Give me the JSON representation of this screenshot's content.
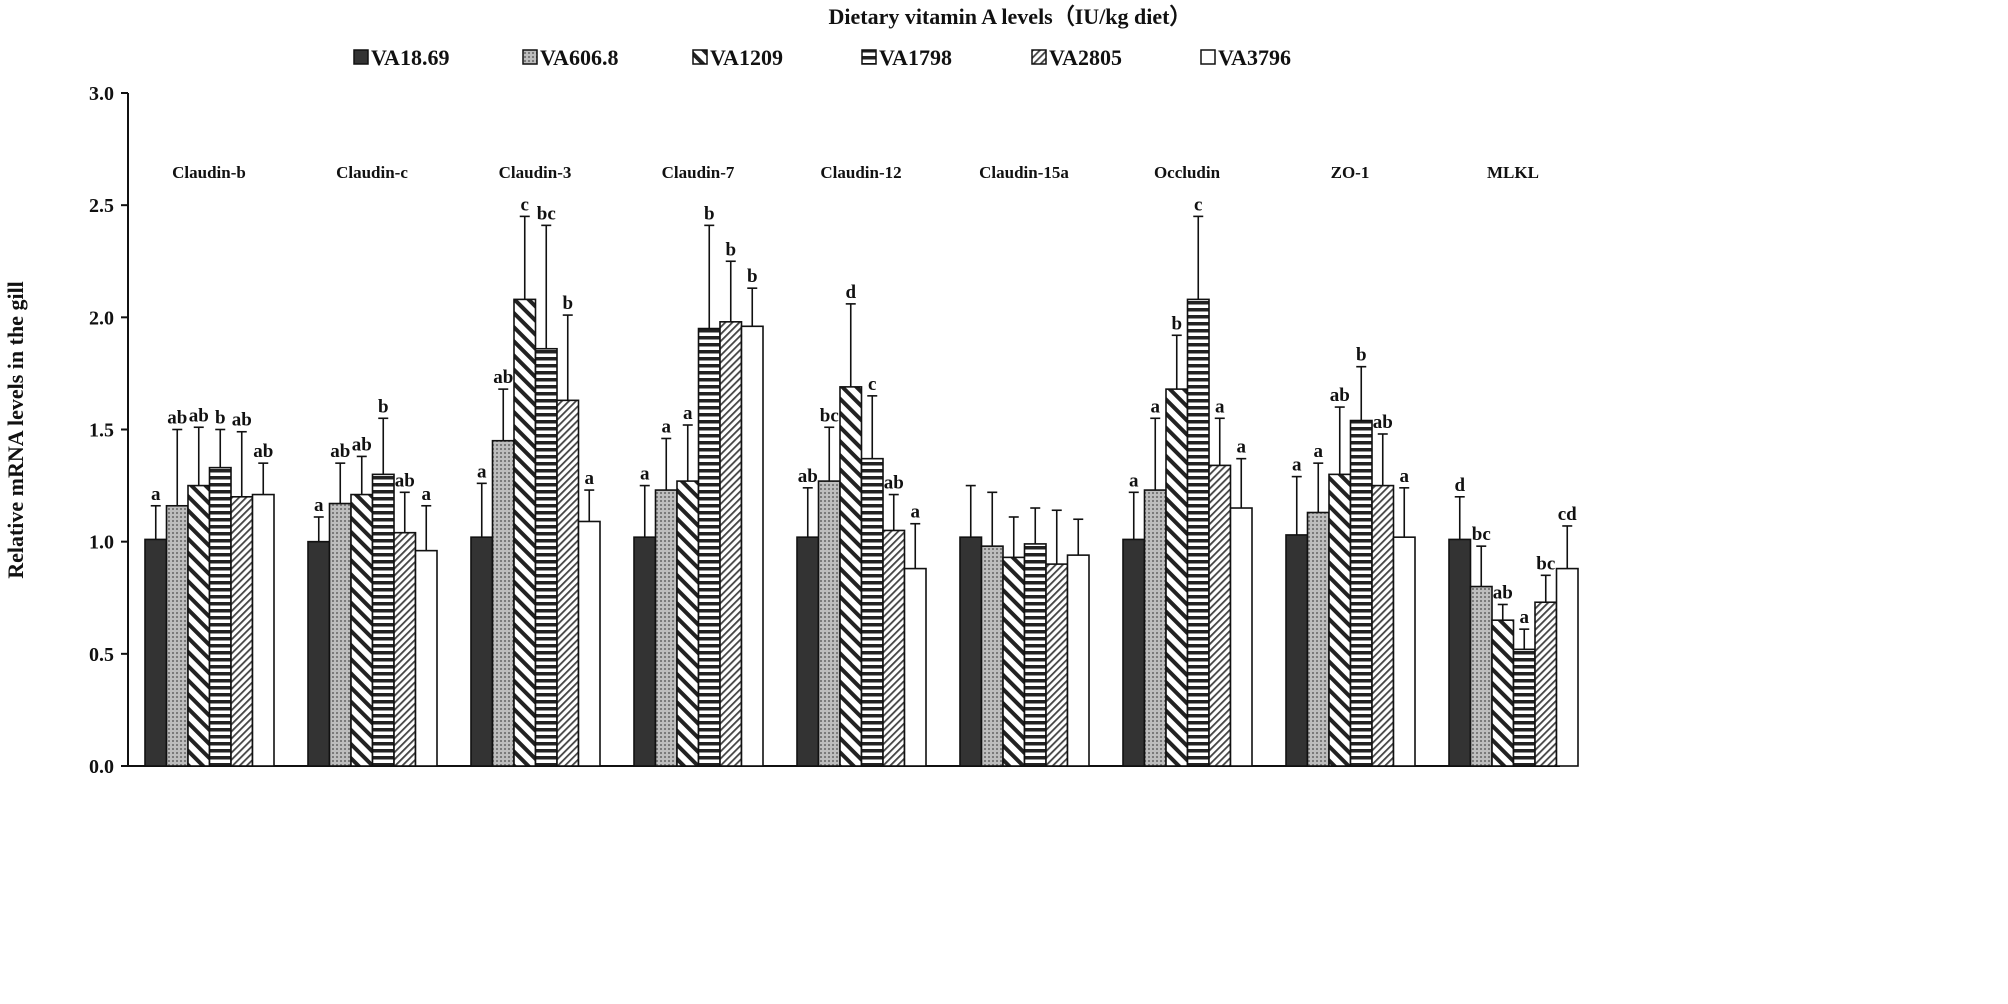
{
  "chart_data": {
    "type": "bar",
    "title": "Dietary  vitamin A  levels（IU/kg diet）",
    "xlabel": "",
    "ylabel": "Relative mRNA levels in the gill",
    "ylim": [
      0,
      3.0
    ],
    "yticks": [
      "0.0",
      "0.5",
      "1.0",
      "1.5",
      "2.0",
      "2.5",
      "3.0"
    ],
    "ytick_values": [
      0,
      0.5,
      1.0,
      1.5,
      2.0,
      2.5,
      3.0
    ],
    "grid": false,
    "legend_position": "top-center",
    "categories": [
      "Claudin-b",
      "Claudin-c",
      "Claudin-3",
      "Claudin-7",
      "Claudin-12",
      "Claudin-15a",
      "Occludin",
      "ZO-1",
      "MLKL"
    ],
    "series": [
      {
        "name": "VA18.69",
        "pattern": "solid-dark",
        "values": [
          1.01,
          1.0,
          1.02,
          1.02,
          1.02,
          1.02,
          1.01,
          1.03,
          1.01
        ],
        "error_top": [
          1.16,
          1.11,
          1.26,
          1.25,
          1.24,
          1.25,
          1.22,
          1.29,
          1.2
        ],
        "letters": [
          "a",
          "a",
          "a",
          "a",
          "ab",
          "",
          "a",
          "a",
          "d"
        ]
      },
      {
        "name": "VA606.8",
        "pattern": "dotted-gray",
        "values": [
          1.16,
          1.17,
          1.45,
          1.23,
          1.27,
          0.98,
          1.23,
          1.13,
          0.8
        ],
        "error_top": [
          1.5,
          1.35,
          1.68,
          1.46,
          1.51,
          1.22,
          1.55,
          1.35,
          0.98
        ],
        "letters": [
          "ab",
          "ab",
          "ab",
          "a",
          "bc",
          "",
          "a",
          "a",
          "bc"
        ]
      },
      {
        "name": "VA1209",
        "pattern": "wide-backslash",
        "values": [
          1.25,
          1.21,
          2.08,
          1.27,
          1.69,
          0.93,
          1.68,
          1.3,
          0.65
        ],
        "error_top": [
          1.51,
          1.38,
          2.45,
          1.52,
          2.06,
          1.11,
          1.92,
          1.6,
          0.72
        ],
        "letters": [
          "ab",
          "ab",
          "c",
          "a",
          "d",
          "",
          "b",
          "ab",
          "ab"
        ]
      },
      {
        "name": "VA1798",
        "pattern": "horizontal-stripes",
        "values": [
          1.33,
          1.3,
          1.86,
          1.95,
          1.37,
          0.99,
          2.08,
          1.54,
          0.52
        ],
        "error_top": [
          1.5,
          1.55,
          2.41,
          2.41,
          1.65,
          1.15,
          2.45,
          1.78,
          0.61
        ],
        "letters": [
          "b",
          "b",
          "bc",
          "b",
          "c",
          "",
          "c",
          "b",
          "a"
        ]
      },
      {
        "name": "VA2805",
        "pattern": "fine-diagonal",
        "values": [
          1.2,
          1.04,
          1.63,
          1.98,
          1.05,
          0.9,
          1.34,
          1.25,
          0.73
        ],
        "error_top": [
          1.49,
          1.22,
          2.01,
          2.25,
          1.21,
          1.14,
          1.55,
          1.48,
          0.85
        ],
        "letters": [
          "ab",
          "ab",
          "b",
          "b",
          "ab",
          "",
          "a",
          "ab",
          "bc"
        ]
      },
      {
        "name": "VA3796",
        "pattern": "white",
        "values": [
          1.21,
          0.96,
          1.09,
          1.96,
          0.88,
          0.94,
          1.15,
          1.02,
          0.88
        ],
        "error_top": [
          1.35,
          1.16,
          1.23,
          2.13,
          1.08,
          1.1,
          1.37,
          1.24,
          1.07
        ],
        "letters": [
          "ab",
          "a",
          "a",
          "b",
          "a",
          "",
          "a",
          "a",
          "cd"
        ]
      }
    ]
  }
}
